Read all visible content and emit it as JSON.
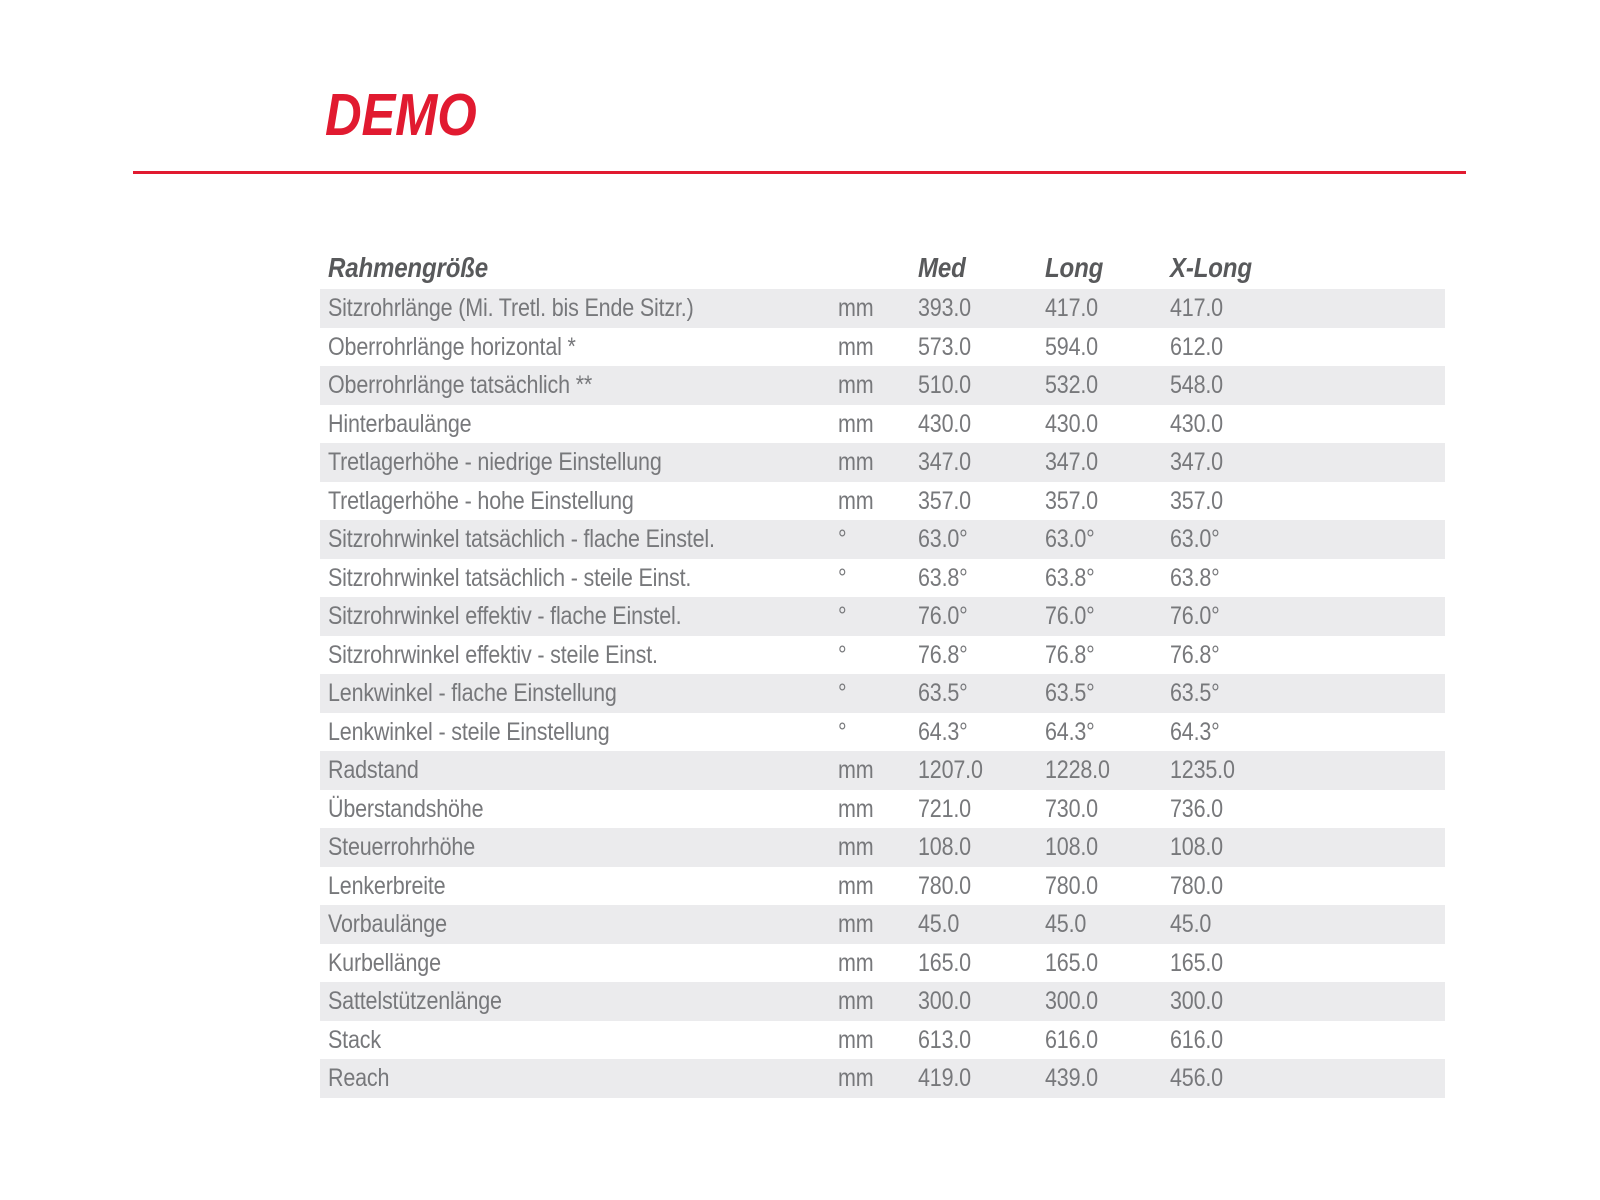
{
  "page": {
    "title": "DEMO",
    "accent_color": "#e11a30",
    "background_color": "#ffffff"
  },
  "table": {
    "stripe_color": "#ebebed",
    "row_text_color": "#77787b",
    "header_text_color": "#58595b",
    "header": {
      "label": "Rahmengröße",
      "unit": "",
      "columns": [
        "Med",
        "Long",
        "X-Long"
      ]
    },
    "rows": [
      {
        "label": "Sitzrohrlänge (Mi. Tretl. bis Ende Sitzr.)",
        "unit": "mm",
        "values": [
          "393.0",
          "417.0",
          "417.0"
        ]
      },
      {
        "label": "Oberrohrlänge horizontal *",
        "unit": "mm",
        "values": [
          "573.0",
          "594.0",
          "612.0"
        ]
      },
      {
        "label": "Oberrohrlänge tatsächlich **",
        "unit": "mm",
        "values": [
          "510.0",
          "532.0",
          "548.0"
        ]
      },
      {
        "label": "Hinterbaulänge",
        "unit": "mm",
        "values": [
          "430.0",
          "430.0",
          "430.0"
        ]
      },
      {
        "label": "Tretlagerhöhe - niedrige Einstellung",
        "unit": "mm",
        "values": [
          "347.0",
          "347.0",
          "347.0"
        ]
      },
      {
        "label": "Tretlagerhöhe - hohe Einstellung",
        "unit": "mm",
        "values": [
          "357.0",
          "357.0",
          "357.0"
        ]
      },
      {
        "label": "Sitzrohrwinkel tatsächlich - flache Einstel.",
        "unit": "°",
        "values": [
          "63.0°",
          "63.0°",
          "63.0°"
        ]
      },
      {
        "label": "Sitzrohrwinkel tatsächlich - steile Einst.",
        "unit": "°",
        "values": [
          "63.8°",
          "63.8°",
          "63.8°"
        ]
      },
      {
        "label": "Sitzrohrwinkel effektiv - flache Einstel.",
        "unit": "°",
        "values": [
          "76.0°",
          "76.0°",
          "76.0°"
        ]
      },
      {
        "label": "Sitzrohrwinkel effektiv - steile Einst.",
        "unit": "°",
        "values": [
          "76.8°",
          "76.8°",
          "76.8°"
        ]
      },
      {
        "label": "Lenkwinkel - flache Einstellung",
        "unit": "°",
        "values": [
          "63.5°",
          "63.5°",
          "63.5°"
        ]
      },
      {
        "label": "Lenkwinkel - steile Einstellung",
        "unit": "°",
        "values": [
          "64.3°",
          "64.3°",
          "64.3°"
        ]
      },
      {
        "label": "Radstand",
        "unit": "mm",
        "values": [
          "1207.0",
          "1228.0",
          "1235.0"
        ]
      },
      {
        "label": "Überstandshöhe",
        "unit": "mm",
        "values": [
          "721.0",
          "730.0",
          "736.0"
        ]
      },
      {
        "label": "Steuerrohrhöhe",
        "unit": "mm",
        "values": [
          "108.0",
          "108.0",
          "108.0"
        ]
      },
      {
        "label": "Lenkerbreite",
        "unit": "mm",
        "values": [
          "780.0",
          "780.0",
          "780.0"
        ]
      },
      {
        "label": "Vorbaulänge",
        "unit": "mm",
        "values": [
          "45.0",
          "45.0",
          "45.0"
        ]
      },
      {
        "label": "Kurbellänge",
        "unit": "mm",
        "values": [
          "165.0",
          "165.0",
          "165.0"
        ]
      },
      {
        "label": "Sattelstützenlänge",
        "unit": "mm",
        "values": [
          "300.0",
          "300.0",
          "300.0"
        ]
      },
      {
        "label": "Stack",
        "unit": "mm",
        "values": [
          "613.0",
          "616.0",
          "616.0"
        ]
      },
      {
        "label": "Reach",
        "unit": "mm",
        "values": [
          "419.0",
          "439.0",
          "456.0"
        ]
      }
    ]
  }
}
